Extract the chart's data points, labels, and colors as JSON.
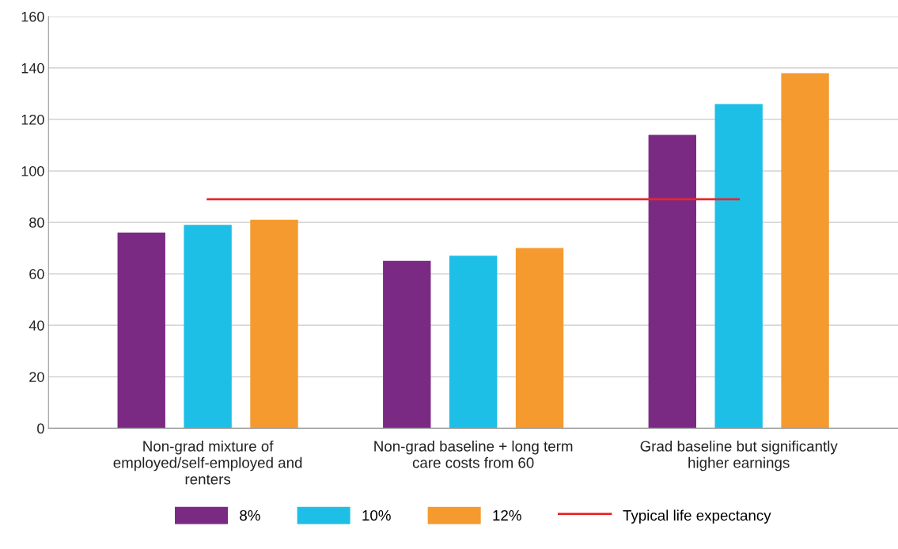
{
  "chart_data": {
    "type": "bar",
    "categories": [
      "Non-grad mixture of employed/self-employed and renters",
      "Non-grad baseline + long term care costs from 60",
      "Grad baseline but significantly higher earnings"
    ],
    "series": [
      {
        "name": "8%",
        "color": "#7b2a84",
        "values": [
          76,
          65,
          114
        ]
      },
      {
        "name": "10%",
        "color": "#1ebfe6",
        "values": [
          79,
          67,
          126
        ]
      },
      {
        "name": "12%",
        "color": "#f59a2f",
        "values": [
          81,
          70,
          138
        ]
      },
      {
        "name": "Typical life expectancy",
        "color": "#e8262b",
        "type": "line",
        "values": [
          89,
          89,
          89
        ]
      }
    ],
    "ylim": [
      0,
      160
    ],
    "yticks": [
      0,
      20,
      40,
      60,
      80,
      100,
      120,
      140,
      160
    ],
    "grid": "y",
    "legend": "bottom",
    "marker": "none",
    "line_style": "solid"
  }
}
